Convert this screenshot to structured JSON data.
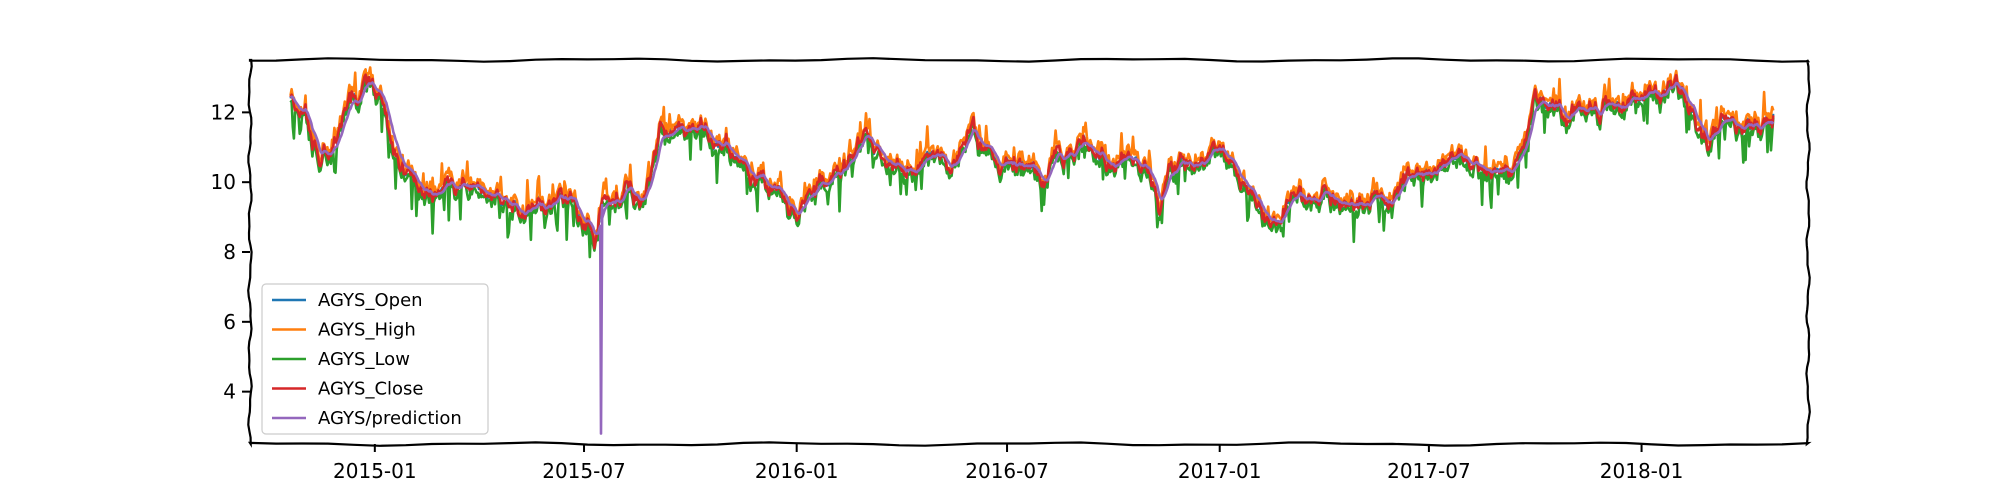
{
  "chart_data": {
    "type": "line",
    "x_type": "date",
    "x_start": "2014-10-20",
    "x_end": "2018-04-25",
    "xlim": [
      "2014-09-15",
      "2018-05-25"
    ],
    "ylim": [
      2.5,
      13.5
    ],
    "x_ticks": [
      {
        "date": "2015-01-01",
        "label": "2015-01"
      },
      {
        "date": "2015-07-01",
        "label": "2015-07"
      },
      {
        "date": "2016-01-01",
        "label": "2016-01"
      },
      {
        "date": "2016-07-01",
        "label": "2016-07"
      },
      {
        "date": "2017-01-01",
        "label": "2017-01"
      },
      {
        "date": "2017-07-01",
        "label": "2017-07"
      },
      {
        "date": "2018-01-01",
        "label": "2018-01"
      }
    ],
    "y_ticks": [
      4,
      6,
      8,
      10,
      12
    ],
    "y_tick_labels": [
      "4",
      "6",
      "8",
      "10",
      "12"
    ],
    "grid": false,
    "legend_position": "lower-left",
    "base_close": [
      [
        "2014-10-20",
        12.5
      ],
      [
        "2014-11-01",
        11.9
      ],
      [
        "2014-11-15",
        10.5
      ],
      [
        "2014-12-01",
        11.6
      ],
      [
        "2014-12-15",
        12.4
      ],
      [
        "2015-01-01",
        12.6
      ],
      [
        "2015-01-15",
        11.0
      ],
      [
        "2015-02-01",
        10.1
      ],
      [
        "2015-02-15",
        9.6
      ],
      [
        "2015-03-01",
        9.8
      ],
      [
        "2015-03-15",
        10.0
      ],
      [
        "2015-04-01",
        9.9
      ],
      [
        "2015-04-15",
        9.2
      ],
      [
        "2015-05-01",
        9.4
      ],
      [
        "2015-05-15",
        9.3
      ],
      [
        "2015-06-01",
        9.5
      ],
      [
        "2015-06-15",
        9.4
      ],
      [
        "2015-07-01",
        8.9
      ],
      [
        "2015-07-10",
        8.2
      ],
      [
        "2015-07-15",
        9.5
      ],
      [
        "2015-07-25",
        9.7
      ],
      [
        "2015-08-10",
        9.8
      ],
      [
        "2015-08-20",
        9.4
      ],
      [
        "2015-09-05",
        11.5
      ],
      [
        "2015-09-20",
        11.2
      ],
      [
        "2015-10-01",
        11.6
      ],
      [
        "2015-10-10",
        12.1
      ],
      [
        "2015-10-20",
        11.2
      ],
      [
        "2015-11-01",
        11.0
      ],
      [
        "2015-11-15",
        10.6
      ],
      [
        "2015-12-01",
        10.0
      ],
      [
        "2015-12-15",
        9.6
      ],
      [
        "2016-01-01",
        9.2
      ],
      [
        "2016-01-15",
        9.6
      ],
      [
        "2016-02-01",
        10.0
      ],
      [
        "2016-02-15",
        10.3
      ],
      [
        "2016-03-01",
        11.3
      ],
      [
        "2016-03-15",
        10.6
      ],
      [
        "2016-04-01",
        10.0
      ],
      [
        "2016-04-15",
        10.5
      ],
      [
        "2016-05-01",
        10.9
      ],
      [
        "2016-05-15",
        10.6
      ],
      [
        "2016-06-01",
        11.3
      ],
      [
        "2016-06-15",
        10.8
      ],
      [
        "2016-07-01",
        10.4
      ],
      [
        "2016-07-15",
        10.8
      ],
      [
        "2016-08-01",
        10.4
      ],
      [
        "2016-08-15",
        10.9
      ],
      [
        "2016-09-01",
        11.2
      ],
      [
        "2016-09-15",
        10.9
      ],
      [
        "2016-10-01",
        10.4
      ],
      [
        "2016-10-15",
        10.7
      ],
      [
        "2016-11-01",
        10.3
      ],
      [
        "2016-11-10",
        9.2
      ],
      [
        "2016-11-20",
        10.5
      ],
      [
        "2016-12-01",
        10.7
      ],
      [
        "2016-12-15",
        10.6
      ],
      [
        "2017-01-01",
        10.6
      ],
      [
        "2017-01-15",
        10.3
      ],
      [
        "2017-02-01",
        9.3
      ],
      [
        "2017-02-15",
        9.0
      ],
      [
        "2017-03-01",
        9.5
      ],
      [
        "2017-03-15",
        9.4
      ],
      [
        "2017-04-01",
        9.5
      ],
      [
        "2017-04-15",
        9.3
      ],
      [
        "2017-05-01",
        9.7
      ],
      [
        "2017-05-15",
        9.6
      ],
      [
        "2017-06-01",
        9.9
      ],
      [
        "2017-06-15",
        10.1
      ],
      [
        "2017-07-01",
        10.2
      ],
      [
        "2017-07-15",
        10.6
      ],
      [
        "2017-08-01",
        10.2
      ],
      [
        "2017-08-15",
        10.4
      ],
      [
        "2017-09-01",
        10.4
      ],
      [
        "2017-09-15",
        10.5
      ],
      [
        "2017-10-01",
        12.5
      ],
      [
        "2017-10-15",
        12.3
      ],
      [
        "2017-11-01",
        12.0
      ],
      [
        "2017-11-15",
        12.1
      ],
      [
        "2017-12-01",
        12.3
      ],
      [
        "2017-12-15",
        12.4
      ],
      [
        "2018-01-01",
        12.5
      ],
      [
        "2018-01-15",
        12.3
      ],
      [
        "2018-02-01",
        12.4
      ],
      [
        "2018-02-15",
        11.8
      ],
      [
        "2018-03-01",
        11.2
      ],
      [
        "2018-03-15",
        11.6
      ],
      [
        "2018-04-01",
        12.0
      ],
      [
        "2018-04-15",
        11.8
      ],
      [
        "2018-04-25",
        12.0
      ]
    ],
    "prediction_spike": {
      "date": "2015-07-15",
      "min_value": 2.8
    },
    "series": [
      {
        "name": "AGYS_Open",
        "color": "#1f77b4"
      },
      {
        "name": "AGYS_High",
        "color": "#ff7f0e"
      },
      {
        "name": "AGYS_Low",
        "color": "#2ca02c"
      },
      {
        "name": "AGYS_Close",
        "color": "#d62728"
      },
      {
        "name": "AGYS/prediction",
        "color": "#9467bd"
      }
    ]
  }
}
